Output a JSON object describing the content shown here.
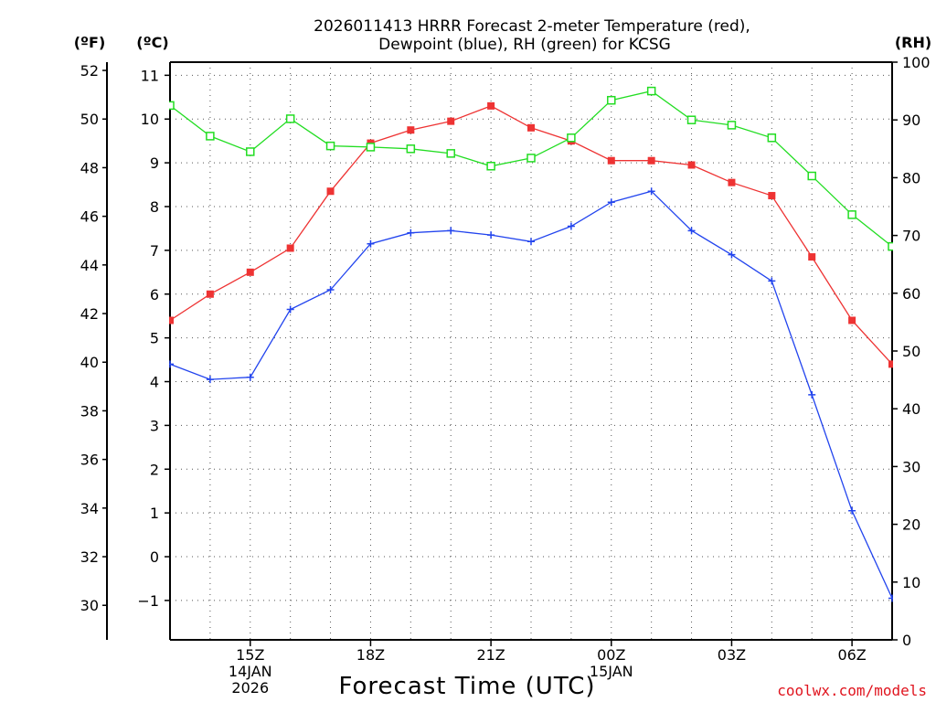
{
  "chart_data": {
    "type": "line",
    "title_line1": "2026011413 HRRR Forecast 2-meter Temperature (red),",
    "title_line2": "Dewpoint (blue), RH (green) for KCSG",
    "xlabel": "Forecast Time (UTC)",
    "credit": "coolwx.com/models",
    "unit_f": "(ºF)",
    "unit_c": "(ºC)",
    "unit_rh": "(RH)",
    "x_hours": [
      13,
      14,
      15,
      16,
      17,
      18,
      19,
      20,
      21,
      22,
      23,
      24,
      25,
      26,
      27,
      28,
      29,
      30,
      31
    ],
    "x_ticks": [
      {
        "hour": 15,
        "lines": [
          "15Z",
          "14JAN",
          "2026"
        ]
      },
      {
        "hour": 18,
        "lines": [
          "18Z"
        ]
      },
      {
        "hour": 21,
        "lines": [
          "21Z"
        ]
      },
      {
        "hour": 24,
        "lines": [
          "00Z",
          "15JAN"
        ]
      },
      {
        "hour": 27,
        "lines": [
          "03Z"
        ]
      },
      {
        "hour": 30,
        "lines": [
          "06Z"
        ]
      }
    ],
    "xlim": [
      13,
      31
    ],
    "c_ylim": [
      -1.9,
      11.3
    ],
    "c_ticks": [
      "11",
      "10",
      "9",
      "8",
      "7",
      "6",
      "5",
      "4",
      "3",
      "2",
      "1",
      "0",
      "−1"
    ],
    "f_ticks": [
      "52",
      "50",
      "48",
      "46",
      "44",
      "42",
      "40",
      "38",
      "36",
      "34",
      "32",
      "30"
    ],
    "rh_ticks": [
      "100",
      "90",
      "80",
      "70",
      "60",
      "50",
      "40",
      "30",
      "20",
      "10",
      "0"
    ],
    "rh_ylim": [
      0,
      100
    ],
    "series": [
      {
        "name": "Temperature",
        "unit": "C",
        "color": "#ee3333",
        "marker": "filled-square",
        "values": [
          5.4,
          6.0,
          6.5,
          7.05,
          8.35,
          9.45,
          9.75,
          9.95,
          10.3,
          9.8,
          9.5,
          9.05,
          9.05,
          8.95,
          8.55,
          8.25,
          6.85,
          5.4,
          4.4
        ]
      },
      {
        "name": "Dewpoint",
        "unit": "C",
        "color": "#2244ee",
        "marker": "plus",
        "values": [
          4.4,
          4.05,
          4.1,
          5.65,
          6.1,
          7.15,
          7.4,
          7.45,
          7.35,
          7.2,
          7.55,
          8.1,
          8.35,
          7.45,
          6.9,
          6.3,
          3.7,
          1.05,
          -0.95
        ]
      },
      {
        "name": "RH",
        "unit": "%",
        "color": "#22dd22",
        "marker": "open-square",
        "values": [
          92.5,
          87.2,
          84.5,
          90.2,
          85.5,
          85.3,
          85.0,
          84.2,
          82.0,
          83.4,
          86.9,
          93.4,
          95.0,
          90.0,
          89.1,
          86.9,
          80.3,
          73.6,
          68.1
        ]
      }
    ]
  }
}
